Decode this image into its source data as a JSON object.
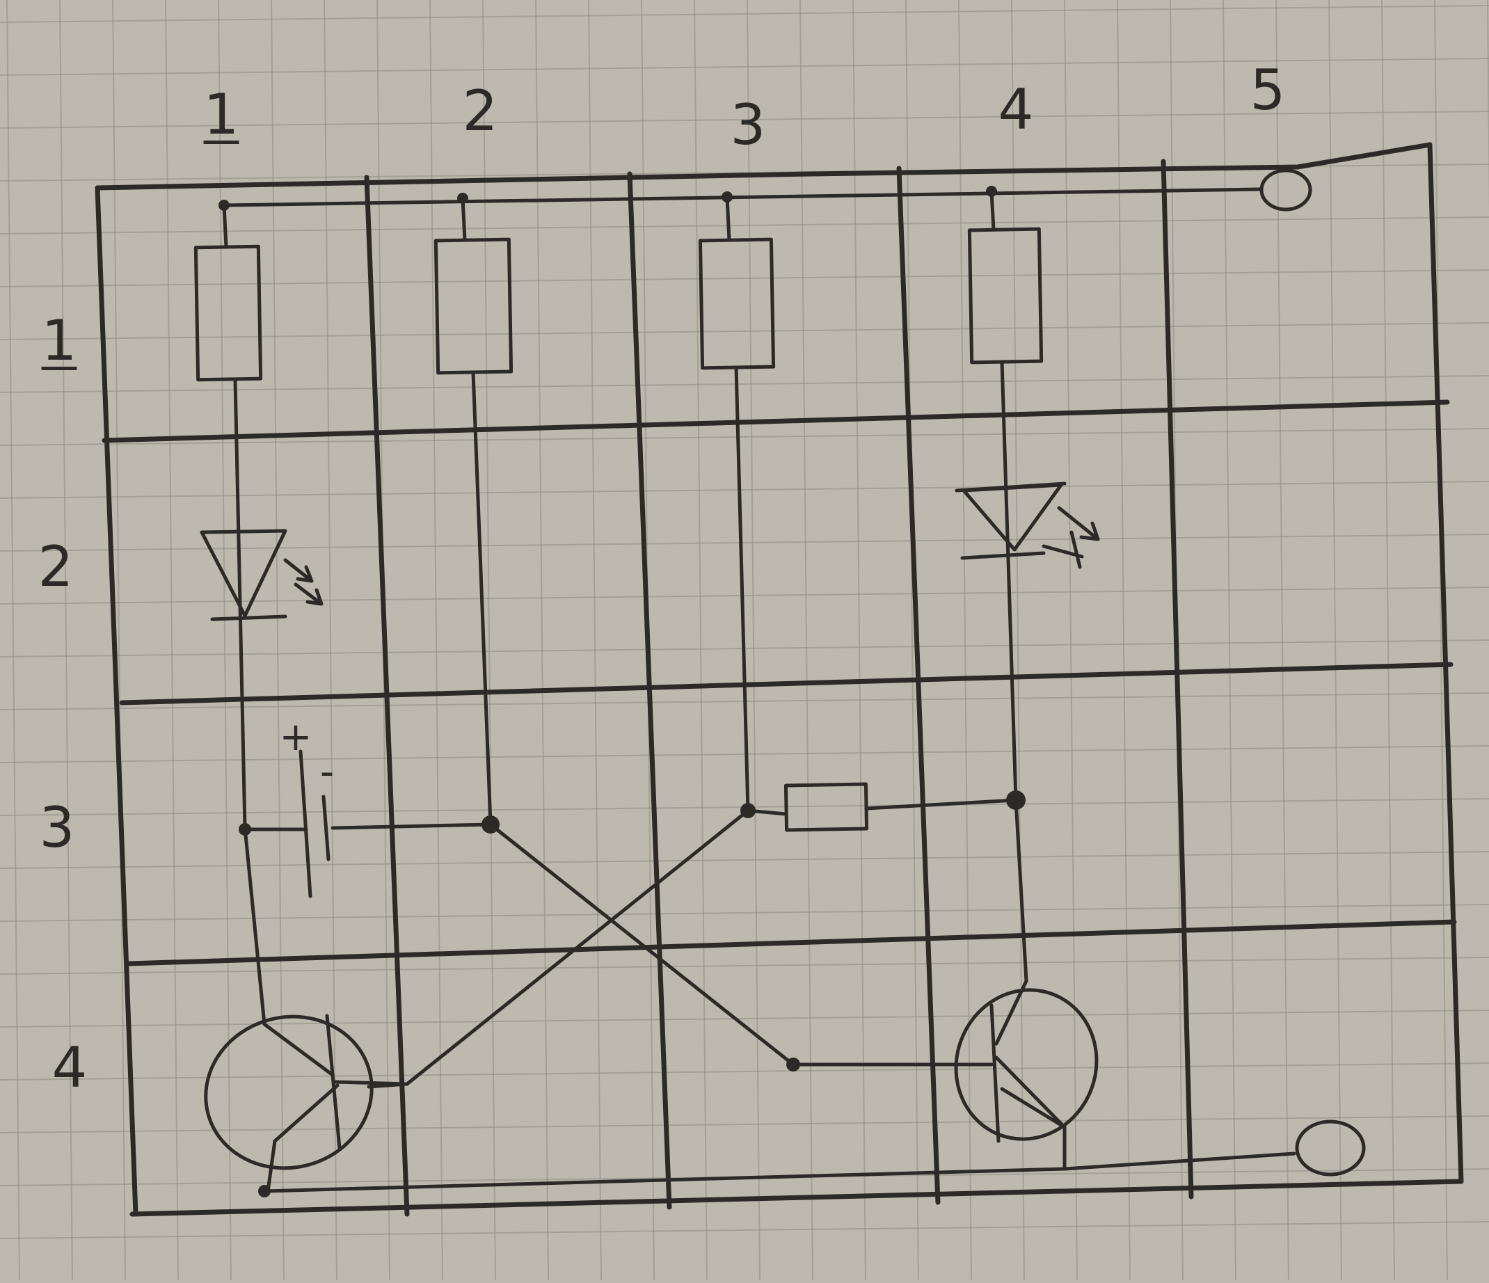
{
  "column_labels": [
    "1",
    "2",
    "3",
    "4",
    "5"
  ],
  "row_labels": [
    "1",
    "2",
    "3",
    "4"
  ],
  "battery": {
    "plus": "+",
    "minus": "-"
  },
  "colors": {
    "paper": "#bdb9ae",
    "grid": "#8f8c84",
    "ink": "#2b2a27"
  },
  "components": [
    "resistor-r1",
    "resistor-r2",
    "resistor-r3",
    "resistor-r4",
    "resistor-r5",
    "led-1",
    "led-2",
    "battery",
    "transistor-q1",
    "transistor-q2",
    "terminal-top",
    "terminal-bottom"
  ]
}
